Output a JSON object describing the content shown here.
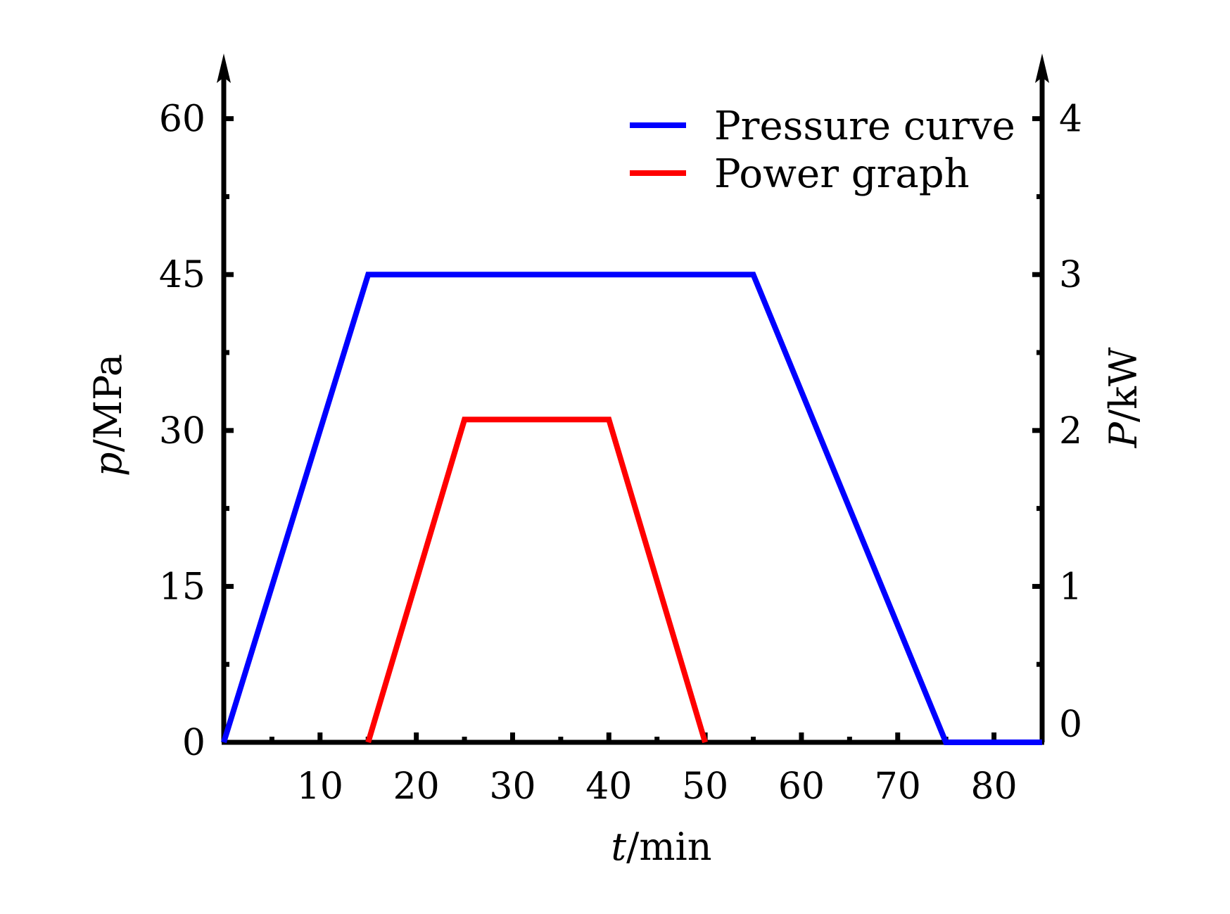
{
  "chart_data": {
    "type": "line",
    "title": "",
    "x_axis": {
      "label_var": "t",
      "label_unit": "/min",
      "range": [
        0,
        85
      ],
      "major_ticks": [
        10,
        20,
        30,
        40,
        50,
        60,
        70,
        80
      ],
      "tick_labels": [
        "10",
        "20",
        "30",
        "40",
        "50",
        "60",
        "70",
        "80"
      ],
      "minor_ticks": [
        5,
        15,
        25,
        35,
        45,
        55,
        65,
        75
      ]
    },
    "y_axis_left": {
      "label_var": "p",
      "label_unit": "/MPa",
      "range": [
        0,
        66
      ],
      "major_ticks": [
        0,
        15,
        30,
        45,
        60
      ],
      "tick_labels": [
        "0",
        "15",
        "30",
        "45",
        "60"
      ],
      "minor_ticks": [
        7.5,
        22.5,
        37.5,
        52.5
      ]
    },
    "y_axis_right": {
      "label_var": "P",
      "label_unit": "/kW",
      "range": [
        0,
        4.4
      ],
      "major_ticks": [
        0,
        1,
        2,
        3,
        4
      ],
      "tick_labels": [
        "0",
        "1",
        "2",
        "3",
        "4"
      ],
      "minor_ticks": [
        0.5,
        1.5,
        2.5,
        3.5
      ]
    },
    "legend": {
      "position": "top-right"
    },
    "grid": false,
    "series": [
      {
        "name": "Pressure curve",
        "axis": "left",
        "color": "#0000ff",
        "x": [
          0,
          15,
          55,
          75,
          85
        ],
        "y": [
          0,
          45,
          45,
          0,
          0
        ]
      },
      {
        "name": "Power graph",
        "axis": "right",
        "color": "#ff0000",
        "x": [
          15,
          25,
          40,
          50
        ],
        "y": [
          0,
          2.07,
          2.07,
          0
        ]
      }
    ]
  }
}
